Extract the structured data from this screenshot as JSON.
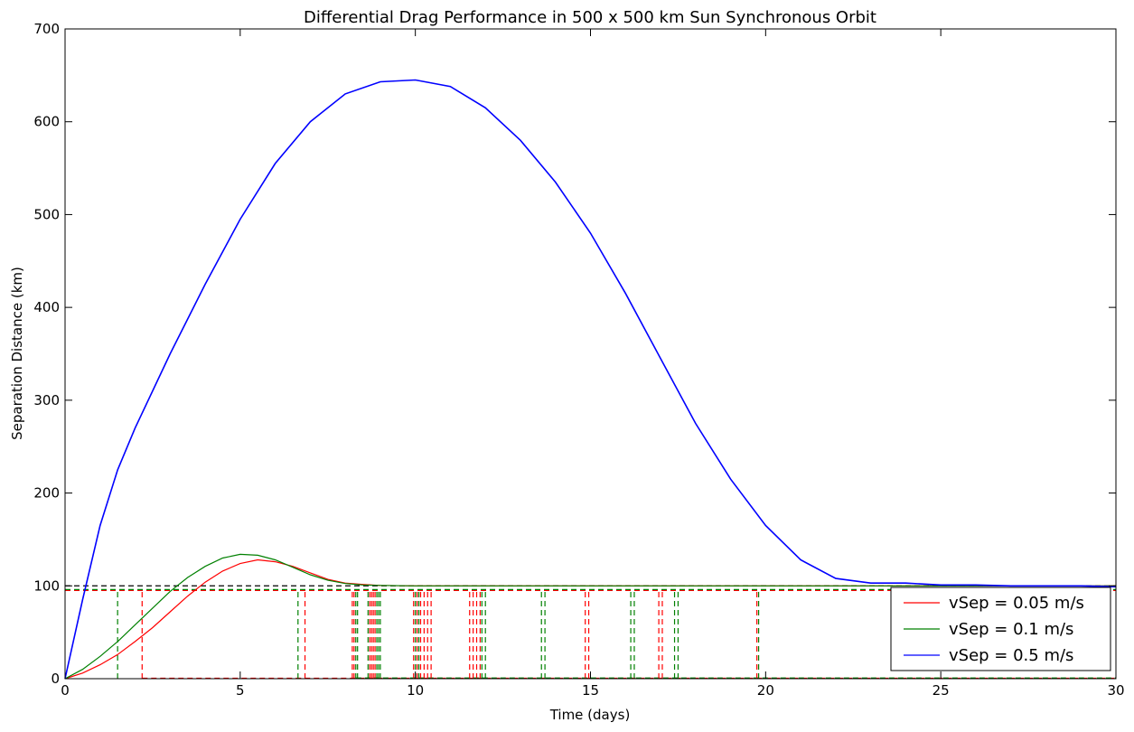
{
  "chart_data": {
    "type": "line",
    "title": "Differential Drag Performance in 500 x 500 km Sun Synchronous Orbit",
    "xlabel": "Time (days)",
    "ylabel": "Separation Distance (km)",
    "xlim": [
      0,
      30
    ],
    "ylim": [
      0,
      700
    ],
    "xticks": [
      0,
      5,
      10,
      15,
      20,
      25,
      30
    ],
    "yticks": [
      0,
      100,
      200,
      300,
      400,
      500,
      600,
      700
    ],
    "grid": false,
    "legend_position": "lower-right",
    "reference_lines": [
      {
        "style": "dashed",
        "color": "#000000",
        "y": 100
      },
      {
        "style": "dashed",
        "color": "#ff0000",
        "y": 95
      },
      {
        "style": "dashed",
        "color": "#008000",
        "y": 96
      }
    ],
    "series": [
      {
        "name": "vSep = 0.05 m/s",
        "color": "#ff0000",
        "x": [
          0,
          0.5,
          1,
          1.5,
          2,
          2.5,
          3,
          3.5,
          4,
          4.5,
          5,
          5.5,
          6,
          6.5,
          7,
          7.5,
          8,
          8.5,
          9,
          10,
          12,
          15,
          20,
          25,
          30
        ],
        "y": [
          0,
          6,
          15,
          26,
          40,
          55,
          72,
          89,
          104,
          116,
          124,
          128,
          126,
          121,
          114,
          107,
          103,
          101.5,
          100.5,
          100,
          100,
          100,
          100,
          100,
          100
        ]
      },
      {
        "name": "vSep = 0.1 m/s",
        "color": "#008000",
        "x": [
          0,
          0.5,
          1,
          1.5,
          2,
          2.5,
          3,
          3.5,
          4,
          4.5,
          5,
          5.5,
          6,
          6.5,
          7,
          7.5,
          8,
          8.5,
          9,
          10,
          12,
          15,
          20,
          25,
          30
        ],
        "y": [
          0,
          10,
          24,
          40,
          58,
          76,
          94,
          109,
          121,
          130,
          134,
          133,
          128,
          120,
          112,
          106,
          102.5,
          101,
          100.5,
          100,
          100,
          100,
          100,
          100,
          100
        ]
      },
      {
        "name": "vSep = 0.5 m/s",
        "color": "#0000ff",
        "x": [
          0,
          0.5,
          1,
          1.5,
          2,
          3,
          4,
          5,
          6,
          7,
          8,
          9,
          10,
          11,
          12,
          13,
          14,
          15,
          16,
          17,
          18,
          19,
          20,
          21,
          22,
          23,
          24,
          25,
          26,
          27,
          28,
          29,
          30
        ],
        "y": [
          0,
          85,
          165,
          225,
          270,
          350,
          425,
          495,
          555,
          600,
          630,
          643,
          645,
          638,
          615,
          580,
          535,
          480,
          415,
          345,
          275,
          215,
          165,
          128,
          108,
          103,
          103,
          101,
          101,
          100,
          100,
          100,
          99
        ]
      }
    ],
    "dashed_event_lines": {
      "red": [
        2.2,
        6.85,
        8.2,
        8.25,
        8.7,
        8.75,
        8.8,
        8.85,
        9.95,
        10.05,
        10.15,
        10.25,
        10.35,
        10.45,
        11.55,
        11.65,
        11.75,
        11.85,
        14.85,
        14.95,
        16.95,
        17.05,
        19.75
      ],
      "green": [
        1.5,
        6.65,
        8.3,
        8.35,
        8.65,
        8.9,
        8.95,
        9.0,
        10.0,
        10.1,
        11.9,
        12.0,
        13.6,
        13.7,
        16.15,
        16.25,
        17.4,
        17.5,
        19.8
      ]
    }
  }
}
